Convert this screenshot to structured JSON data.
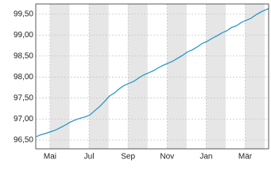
{
  "chart_data": {
    "type": "line",
    "x": [
      0.3,
      0.55,
      0.8,
      1.05,
      1.3,
      1.55,
      1.8,
      2.05,
      2.3,
      2.55,
      2.8,
      3.05,
      3.3,
      3.55,
      3.8,
      4.05,
      4.3,
      4.55,
      4.8,
      5.05,
      5.3,
      5.55,
      5.8,
      6.05,
      6.3,
      6.55,
      6.8,
      7.05,
      7.3,
      7.55,
      7.8,
      8.05,
      8.3,
      8.55,
      8.8,
      9.05,
      9.3,
      9.55,
      9.8,
      10.05,
      10.3,
      10.55,
      10.8,
      11.05,
      11.3,
      11.55,
      11.8,
      12.05,
      12.2
    ],
    "series": [
      {
        "color": "#1a93c8",
        "values": [
          96.58,
          96.63,
          96.66,
          96.7,
          96.74,
          96.8,
          96.86,
          96.93,
          96.98,
          97.02,
          97.05,
          97.1,
          97.2,
          97.3,
          97.42,
          97.55,
          97.62,
          97.72,
          97.8,
          97.85,
          97.9,
          97.98,
          98.05,
          98.1,
          98.15,
          98.22,
          98.28,
          98.33,
          98.38,
          98.45,
          98.52,
          98.6,
          98.65,
          98.72,
          98.8,
          98.85,
          98.92,
          98.98,
          99.05,
          99.1,
          99.18,
          99.22,
          99.3,
          99.35,
          99.4,
          99.48,
          99.55,
          99.6,
          99.63
        ]
      }
    ],
    "xlim": [
      0.27,
      12.2
    ],
    "xticks": [
      {
        "value": 1,
        "label": "Mai"
      },
      {
        "value": 3,
        "label": "Jul"
      },
      {
        "value": 5,
        "label": "Sep"
      },
      {
        "value": 7,
        "label": "Nov"
      },
      {
        "value": 9,
        "label": "Jan"
      },
      {
        "value": 11,
        "label": "Mär"
      }
    ],
    "ylim": [
      96.29,
      99.74
    ],
    "yticks": [
      {
        "value": 96.5,
        "label": "96,50"
      },
      {
        "value": 97,
        "label": "97,00"
      },
      {
        "value": 97.5,
        "label": "97,50"
      },
      {
        "value": 98,
        "label": "98,00"
      },
      {
        "value": 98.5,
        "label": "98,50"
      },
      {
        "value": 99,
        "label": "99,00"
      },
      {
        "value": 99.5,
        "label": "99,50"
      }
    ],
    "grid": true
  }
}
